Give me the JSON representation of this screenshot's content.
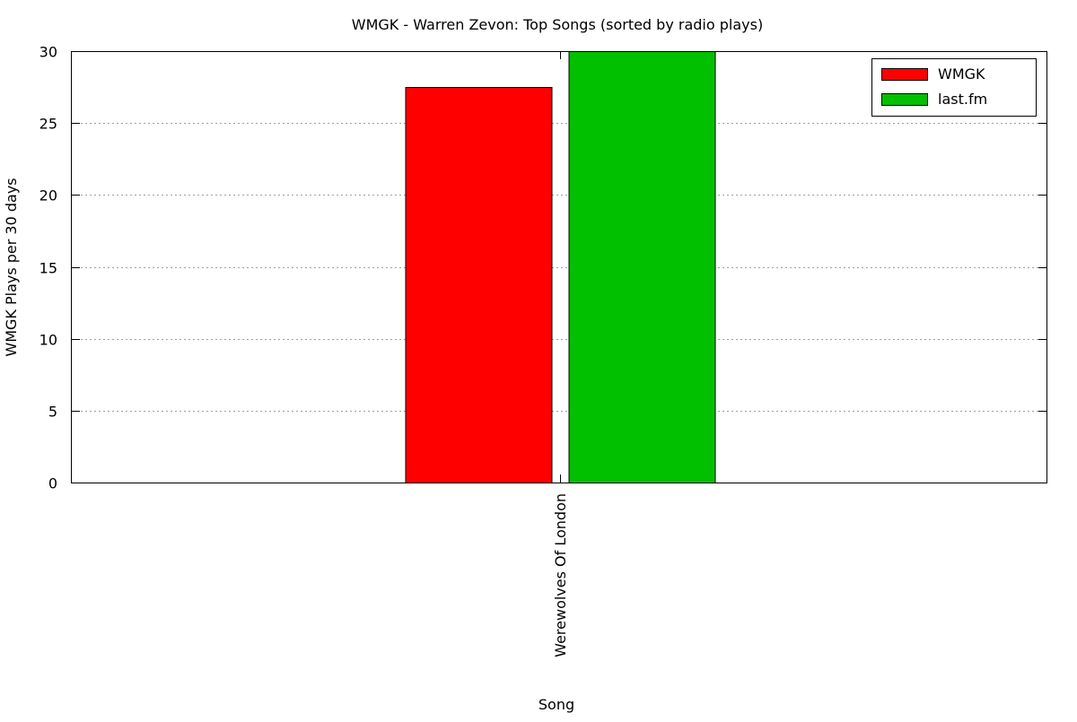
{
  "chart_data": {
    "type": "bar",
    "title": "WMGK - Warren Zevon: Top Songs (sorted by radio plays)",
    "xlabel": "Song",
    "ylabel": "WMGK Plays per 30 days",
    "ylim": [
      0,
      30
    ],
    "yticks": [
      0,
      5,
      10,
      15,
      20,
      25,
      30
    ],
    "categories": [
      "Werewolves Of London"
    ],
    "series": [
      {
        "name": "WMGK",
        "color": "#ff0000",
        "values": [
          27.5
        ]
      },
      {
        "name": "last.fm",
        "color": "#00c000",
        "values": [
          30
        ]
      }
    ],
    "grid": "y-dotted",
    "legend_position": "top-right"
  }
}
